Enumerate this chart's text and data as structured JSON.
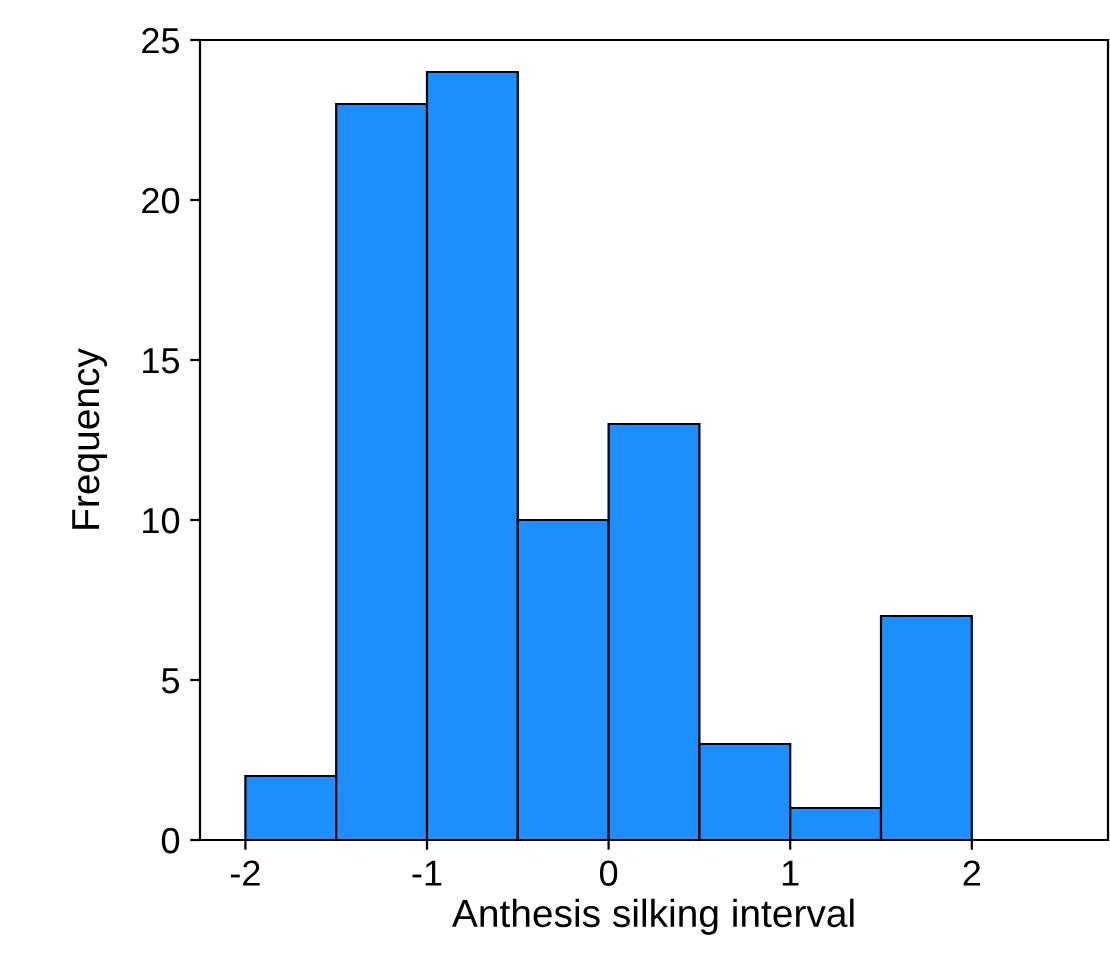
{
  "chart_data": {
    "type": "histogram",
    "xlabel": "Anthesis silking interval",
    "ylabel": "Frequency",
    "bins": [
      -2,
      -1.5,
      -1,
      -0.5,
      0,
      0.5,
      1,
      1.5,
      2
    ],
    "values": [
      2,
      23,
      24,
      10,
      13,
      3,
      1,
      7
    ],
    "color": "#1e8fff",
    "xlim": [
      -2.25,
      2.75
    ],
    "xticks": [
      -2,
      -1,
      0,
      1,
      2
    ],
    "ylim": [
      0,
      25
    ],
    "yticks": [
      0,
      5,
      10,
      15,
      20,
      25
    ],
    "grid": false
  }
}
